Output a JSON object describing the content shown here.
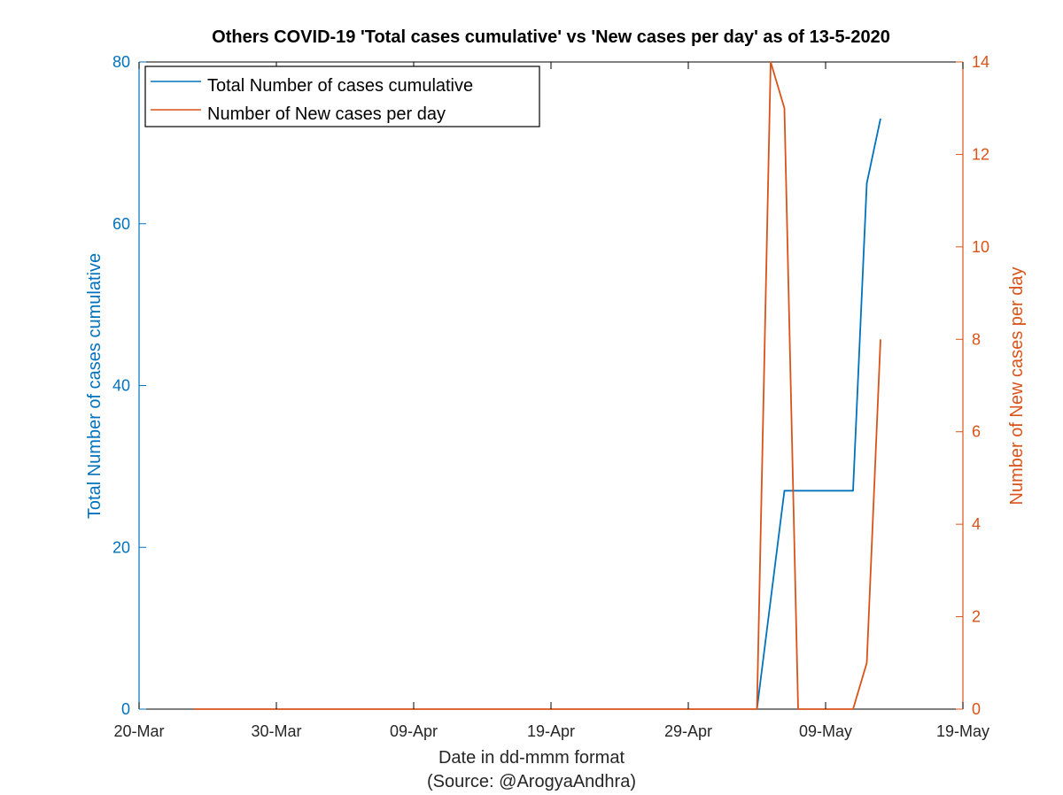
{
  "chart_data": {
    "type": "line",
    "title": "Others COVID-19 'Total cases cumulative' vs 'New cases per day' as of 13-5-2020",
    "xlabel": "Date in dd-mmm format",
    "source": "(Source: @ArogyaAndhra)",
    "ylabel_left": "Total Number of cases cumulative",
    "ylabel_right": "Number of New cases per day",
    "xlim": [
      "2020-03-20",
      "2020-05-19"
    ],
    "x_ticks": [
      "20-Mar",
      "30-Mar",
      "09-Apr",
      "19-Apr",
      "29-Apr",
      "09-May",
      "19-May"
    ],
    "ylim_left": [
      0,
      80
    ],
    "y_ticks_left": [
      "0",
      "20",
      "40",
      "60",
      "80"
    ],
    "ylim_right": [
      0,
      14
    ],
    "y_ticks_right": [
      "0",
      "2",
      "4",
      "6",
      "8",
      "10",
      "12",
      "14"
    ],
    "grid": false,
    "legend_position": "top-left",
    "colors": {
      "cumulative": "#0072BD",
      "new": "#D95319",
      "axis": "#000000"
    },
    "series": [
      {
        "name": "Total Number of cases cumulative",
        "axis": "left",
        "points": [
          [
            "2020-05-04",
            0
          ],
          [
            "2020-05-06",
            27
          ],
          [
            "2020-05-07",
            27
          ],
          [
            "2020-05-08",
            27
          ],
          [
            "2020-05-09",
            27
          ],
          [
            "2020-05-10",
            27
          ],
          [
            "2020-05-11",
            27
          ],
          [
            "2020-05-12",
            65
          ],
          [
            "2020-05-13",
            73
          ]
        ]
      },
      {
        "name": "Number of New cases per day",
        "axis": "right",
        "points": [
          [
            "2020-03-24",
            0
          ],
          [
            "2020-05-04",
            0
          ],
          [
            "2020-05-05",
            14
          ],
          [
            "2020-05-06",
            13
          ],
          [
            "2020-05-07",
            0
          ],
          [
            "2020-05-08",
            0
          ],
          [
            "2020-05-09",
            0
          ],
          [
            "2020-05-10",
            0
          ],
          [
            "2020-05-11",
            0
          ],
          [
            "2020-05-12",
            1
          ],
          [
            "2020-05-13",
            8
          ]
        ]
      }
    ]
  }
}
